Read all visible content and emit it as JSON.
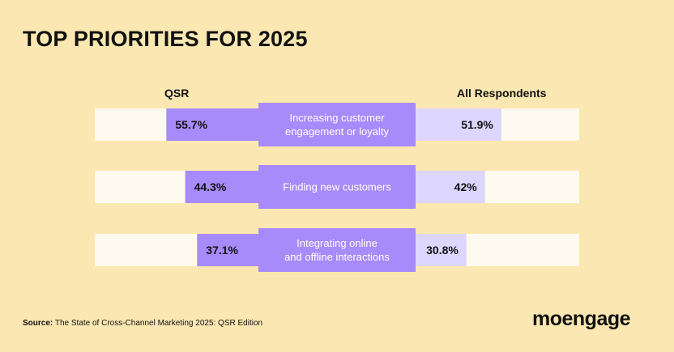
{
  "title": "TOP PRIORITIES FOR 2025",
  "colors": {
    "background": "#fbe7b1",
    "track": "#fffaf0",
    "qsr_bar": "#a78bfa",
    "all_bar": "#ddd6fe",
    "label_box": "#a78bfa",
    "text_dark": "#111111",
    "text_light": "#ffffff"
  },
  "chart_data": {
    "type": "bar",
    "orientation": "diverging-horizontal",
    "title": "TOP PRIORITIES FOR 2025",
    "unit": "%",
    "categories": [
      "Increasing customer\nengagement or loyalty",
      "Finding new customers",
      "Integrating online\nand offline interactions"
    ],
    "series": [
      {
        "name": "QSR",
        "values": [
          55.7,
          44.3,
          37.1
        ],
        "labels": [
          "55.7%",
          "44.3%",
          "37.1%"
        ]
      },
      {
        "name": "All Respondents",
        "values": [
          51.9,
          42,
          30.8
        ],
        "labels": [
          "51.9%",
          "42%",
          "30.8%"
        ]
      }
    ],
    "xlim": [
      0,
      100
    ]
  },
  "footer": {
    "source_label": "Source:",
    "source_text": "The State of Cross-Channel Marketing 2025: QSR Edition",
    "logo": "moengage"
  }
}
